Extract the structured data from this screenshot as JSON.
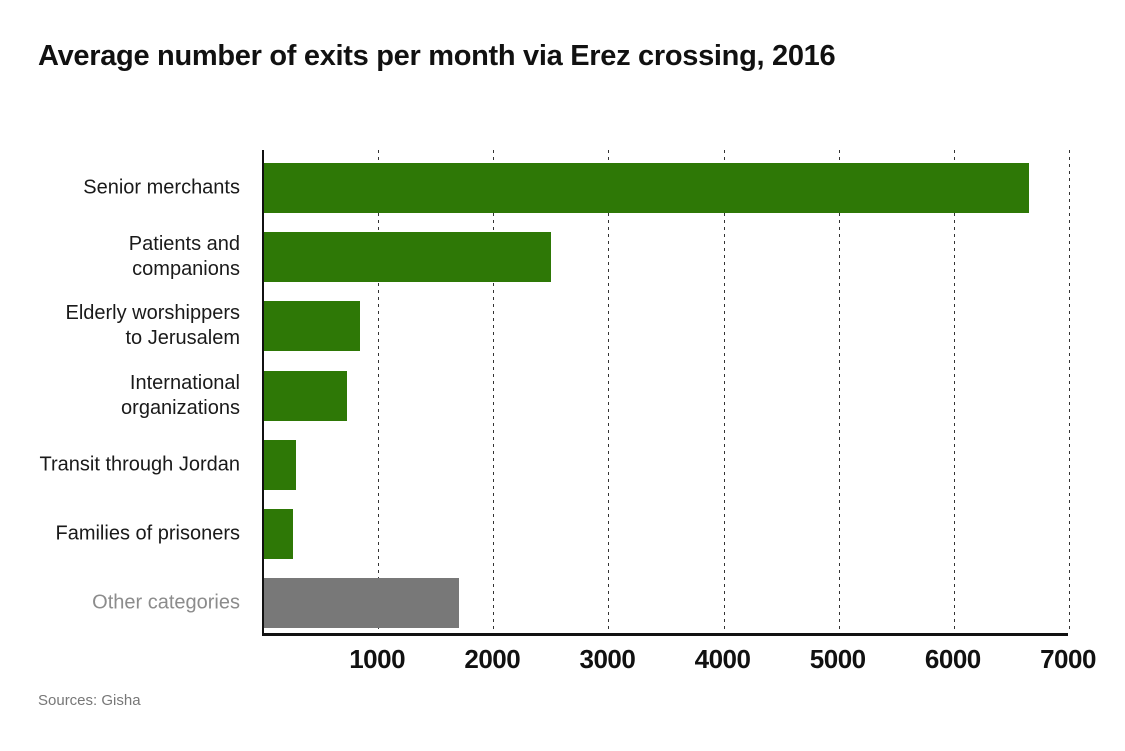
{
  "colors": {
    "bar_primary": "#2e7806",
    "bar_other": "#787878",
    "label_primary": "#1a1a1a",
    "label_other": "#8c8c8c",
    "axis": "#111111",
    "gridline": "#333333",
    "source_text": "#777777"
  },
  "chart_data": {
    "type": "bar",
    "orientation": "horizontal",
    "title": "Average number of exits per month via Erez crossing, 2016",
    "categories": [
      "Senior merchants",
      "Patients and companions",
      "Elderly worshippers to Jerusalem",
      "International organizations",
      "Transit through Jordan",
      "Families of prisoners",
      "Other categories"
    ],
    "category_lines": [
      [
        "Senior merchants"
      ],
      [
        "Patients and",
        "companions"
      ],
      [
        "Elderly worshippers",
        "to Jerusalem"
      ],
      [
        "International",
        "organizations"
      ],
      [
        "Transit through Jordan"
      ],
      [
        "Families of prisoners"
      ],
      [
        "Other categories"
      ]
    ],
    "values": [
      6645,
      2490,
      835,
      725,
      280,
      250,
      1695
    ],
    "bar_color_roles": [
      "primary",
      "primary",
      "primary",
      "primary",
      "primary",
      "primary",
      "other"
    ],
    "xlabel": "",
    "ylabel": "",
    "xlim": [
      0,
      7000
    ],
    "x_ticks": [
      "1000",
      "2000",
      "3000",
      "4000",
      "5000",
      "6000",
      "7000"
    ],
    "grid": "vertical-dashed",
    "legend": "none",
    "source": "Sources: Gisha"
  }
}
